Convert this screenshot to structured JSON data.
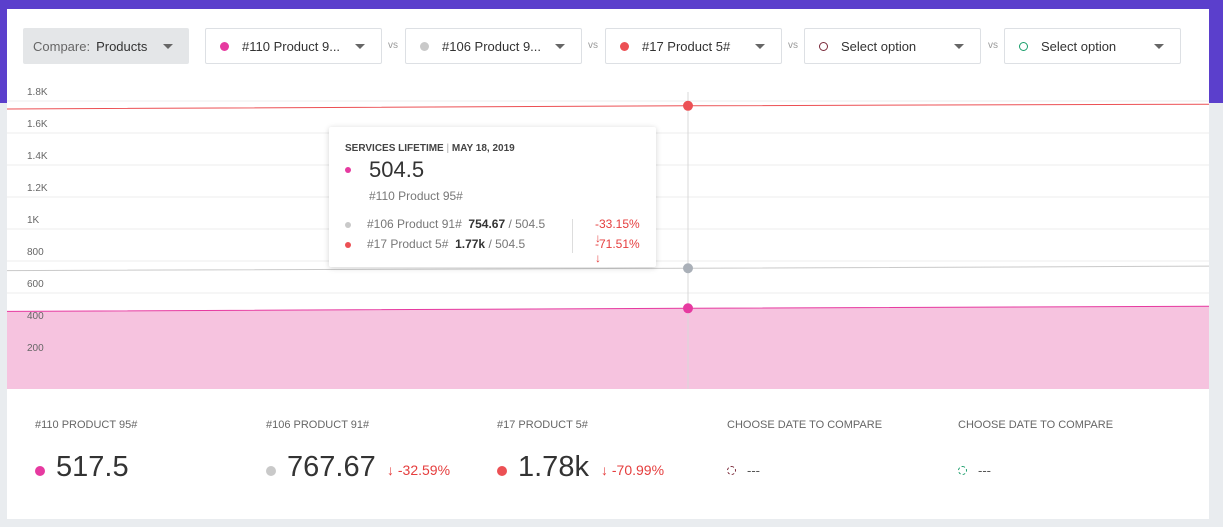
{
  "colors": {
    "header": "#5b3fcc",
    "product_110": "#e63aa0",
    "product_106": "#c9c9c9",
    "product_17": "#ec5054",
    "option_4": "#7a2a3a",
    "option_5": "#1a9e6b",
    "negative": "#e53e3e"
  },
  "toolbar": {
    "compare_label": "Compare:",
    "compare_value": "Products",
    "selects": [
      {
        "label": "#110 Product 9...",
        "icon": "filled-circle"
      },
      {
        "label": "#106 Product 9...",
        "icon": "filled-circle"
      },
      {
        "label": "#17 Product 5#",
        "icon": "filled-circle"
      },
      {
        "label": "Select option",
        "icon": "hollow-circle"
      },
      {
        "label": "Select option",
        "icon": "hollow-circle"
      }
    ],
    "vs": [
      "vs",
      "vs",
      "vs",
      "vs"
    ]
  },
  "chart": {
    "y_ticks": [
      "1.8K",
      "1.6K",
      "1.4K",
      "1.2K",
      "1K",
      "800",
      "600",
      "400",
      "200"
    ]
  },
  "chart_data": {
    "type": "area",
    "ylim": [
      0,
      1800
    ],
    "selected_date": "MAY 18, 2019",
    "series": [
      {
        "name": "#110 Product 95#",
        "values": [
          485,
          504.5,
          517.5
        ]
      },
      {
        "name": "#106 Product 91#",
        "values": [
          740,
          754.67,
          767.67
        ]
      },
      {
        "name": "#17 Product 5#",
        "values": [
          1750,
          1770,
          1780
        ]
      }
    ]
  },
  "tooltip": {
    "metric": "SERVICES LIFETIME",
    "separator": "|",
    "date": "MAY 18, 2019",
    "main_value": "504.5",
    "main_name": "#110 Product 95#",
    "rows": [
      {
        "name": "#106 Product 91#",
        "value": "754.67",
        "ref": " / 504.5",
        "pct": "-33.15% ↓"
      },
      {
        "name": "#17 Product 5#",
        "value": "1.77k",
        "ref": " / 504.5",
        "pct": "-71.51% ↓"
      }
    ]
  },
  "summary": [
    {
      "label": "#110 PRODUCT 95#",
      "value": "517.5",
      "change": ""
    },
    {
      "label": "#106 PRODUCT 91#",
      "value": "767.67",
      "change": "↓ -32.59%"
    },
    {
      "label": "#17 PRODUCT 5#",
      "value": "1.78k",
      "change": "↓ -70.99%"
    },
    {
      "label": "CHOOSE DATE TO COMPARE",
      "value": "---"
    },
    {
      "label": "CHOOSE DATE TO COMPARE",
      "value": "---"
    }
  ]
}
